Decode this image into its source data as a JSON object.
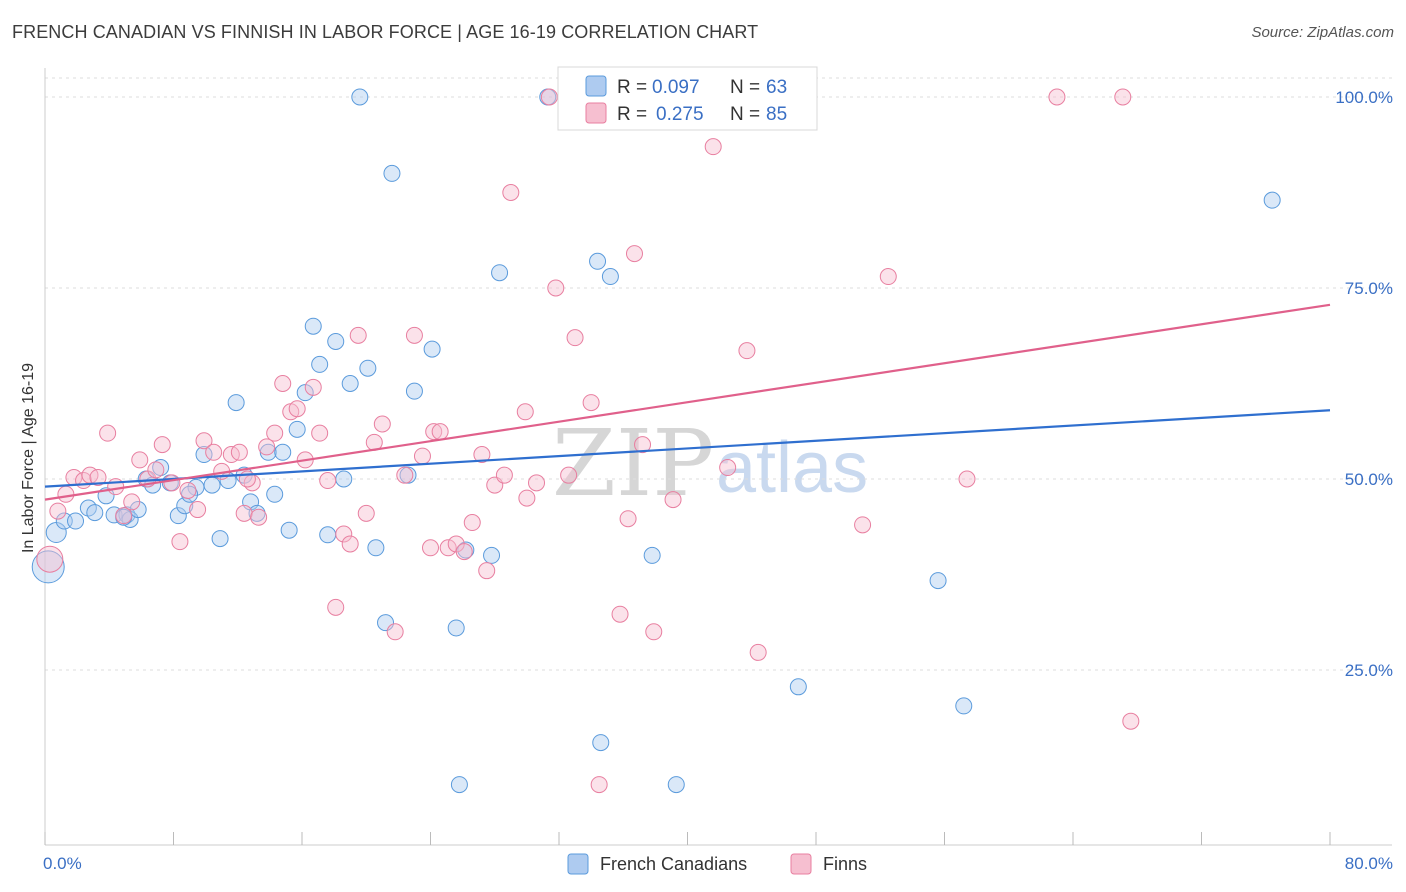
{
  "header": {
    "title": "FRENCH CANADIAN VS FINNISH IN LABOR FORCE | AGE 16-19 CORRELATION CHART",
    "source": "Source: ZipAtlas.com"
  },
  "colors": {
    "blue": "#5b9bdc",
    "blue_fill": "#aecbf0",
    "blue_line": "#2f6fcf",
    "pink": "#e87fa0",
    "pink_fill": "#f6bfd0",
    "pink_line": "#e0608b",
    "axis_label": "#3a6fc4",
    "grid": "#dddddd"
  },
  "watermark": {
    "zip": "ZIP",
    "atlas": "atlas"
  },
  "legend": {
    "rows": [
      {
        "r_label": "R =",
        "r_value": "0.097",
        "n_label": "N =",
        "n_value": "63"
      },
      {
        "r_label": "R =",
        "r_value": "0.275",
        "n_label": "N =",
        "n_value": "85"
      }
    ],
    "bottom": [
      "French Canadians",
      "Finns"
    ]
  },
  "chart_data": {
    "type": "scatter",
    "title": "FRENCH CANADIAN VS FINNISH IN LABOR FORCE | AGE 16-19 CORRELATION CHART",
    "xlabel": "",
    "ylabel": "In Labor Force | Age 16-19",
    "xlim": [
      0,
      80
    ],
    "ylim": [
      0,
      102
    ],
    "x_tick_labels": [
      "0.0%",
      "80.0%"
    ],
    "y_ticks": [
      25,
      50,
      75,
      100
    ],
    "y_tick_labels": [
      "25.0%",
      "50.0%",
      "75.0%",
      "100.0%"
    ],
    "grid": true,
    "legend_position": "top-center",
    "series": [
      {
        "name": "French Canadians",
        "r": 0.097,
        "n": 63,
        "trend": {
          "x0": 0,
          "y0": 49,
          "x1": 80,
          "y1": 59
        },
        "points": [
          [
            0.2,
            38.5,
            30
          ],
          [
            0.7,
            43,
            18
          ],
          [
            1.2,
            44.5,
            14
          ],
          [
            1.9,
            44.5,
            14
          ],
          [
            2.7,
            46.2,
            14
          ],
          [
            3.1,
            45.6,
            14
          ],
          [
            3.8,
            47.8,
            14
          ],
          [
            4.3,
            45.3,
            14
          ],
          [
            5.1,
            45.3,
            14
          ],
          [
            5.3,
            44.7,
            14
          ],
          [
            5.8,
            46.0,
            14
          ],
          [
            6.3,
            50.0,
            14
          ],
          [
            6.7,
            49.2,
            14
          ],
          [
            7.2,
            51.5,
            14
          ],
          [
            7.8,
            49.5,
            14
          ],
          [
            8.3,
            45.2,
            14
          ],
          [
            8.7,
            46.5,
            14
          ],
          [
            9.4,
            48.9,
            14
          ],
          [
            9.9,
            53.2,
            14
          ],
          [
            10.4,
            49.2,
            14
          ],
          [
            10.9,
            42.2,
            14
          ],
          [
            11.4,
            49.8,
            14
          ],
          [
            11.9,
            60.0,
            14
          ],
          [
            12.4,
            50.5,
            14
          ],
          [
            12.8,
            47.0,
            14
          ],
          [
            13.2,
            45.5,
            14
          ],
          [
            13.9,
            53.5,
            14
          ],
          [
            14.3,
            48.0,
            14
          ],
          [
            14.8,
            53.5,
            14
          ],
          [
            15.2,
            43.3,
            14
          ],
          [
            15.7,
            56.5,
            14
          ],
          [
            16.2,
            61.3,
            14
          ],
          [
            16.7,
            70.0,
            14
          ],
          [
            17.1,
            65.0,
            14
          ],
          [
            17.6,
            42.7,
            14
          ],
          [
            18.1,
            68.0,
            14
          ],
          [
            18.6,
            50.0,
            14
          ],
          [
            19.0,
            62.5,
            14
          ],
          [
            19.6,
            100.0,
            14
          ],
          [
            20.1,
            64.5,
            14
          ],
          [
            20.6,
            41.0,
            14
          ],
          [
            21.2,
            31.2,
            14
          ],
          [
            21.6,
            90.0,
            14
          ],
          [
            22.6,
            50.5,
            14
          ],
          [
            23.0,
            61.5,
            14
          ],
          [
            24.1,
            67.0,
            14
          ],
          [
            25.6,
            30.5,
            14
          ],
          [
            25.8,
            10.0,
            14
          ],
          [
            26.2,
            40.7,
            14
          ],
          [
            27.8,
            40.0,
            14
          ],
          [
            28.3,
            77.0,
            14
          ],
          [
            31.3,
            100.0,
            14
          ],
          [
            34.4,
            78.5,
            14
          ],
          [
            34.6,
            15.5,
            14
          ],
          [
            35.2,
            76.5,
            14
          ],
          [
            37.8,
            40.0,
            14
          ],
          [
            39.3,
            10.0,
            14
          ],
          [
            46.9,
            22.8,
            14
          ],
          [
            55.6,
            36.7,
            14
          ],
          [
            57.2,
            20.3,
            14
          ],
          [
            76.4,
            86.5,
            14
          ],
          [
            4.9,
            45.0,
            14
          ],
          [
            9.0,
            48.0,
            14
          ]
        ]
      },
      {
        "name": "Finns",
        "r": 0.275,
        "n": 85,
        "trend": {
          "x0": 0,
          "y0": 47.3,
          "x1": 80,
          "y1": 72.8
        },
        "points": [
          [
            0.3,
            39.5,
            24
          ],
          [
            0.8,
            45.8,
            14
          ],
          [
            1.3,
            48.0,
            14
          ],
          [
            1.8,
            50.2,
            14
          ],
          [
            2.4,
            49.8,
            14
          ],
          [
            2.8,
            50.5,
            14
          ],
          [
            3.3,
            50.2,
            14
          ],
          [
            3.9,
            56.0,
            14
          ],
          [
            4.4,
            49.0,
            14
          ],
          [
            4.9,
            45.2,
            14
          ],
          [
            5.4,
            47.0,
            14
          ],
          [
            5.9,
            52.5,
            14
          ],
          [
            6.4,
            50.0,
            14
          ],
          [
            6.9,
            51.2,
            14
          ],
          [
            7.3,
            54.5,
            14
          ],
          [
            7.9,
            49.5,
            14
          ],
          [
            8.4,
            41.8,
            14
          ],
          [
            8.9,
            48.5,
            14
          ],
          [
            9.5,
            46.0,
            14
          ],
          [
            9.9,
            55.0,
            14
          ],
          [
            10.5,
            53.5,
            14
          ],
          [
            11.0,
            51.0,
            14
          ],
          [
            11.6,
            53.2,
            14
          ],
          [
            12.1,
            53.5,
            14
          ],
          [
            12.4,
            45.5,
            14
          ],
          [
            12.9,
            49.5,
            14
          ],
          [
            13.3,
            45.0,
            14
          ],
          [
            13.8,
            54.2,
            14
          ],
          [
            14.3,
            56.0,
            14
          ],
          [
            14.8,
            62.5,
            14
          ],
          [
            15.3,
            58.8,
            14
          ],
          [
            15.7,
            59.2,
            14
          ],
          [
            16.2,
            52.5,
            14
          ],
          [
            16.7,
            62.0,
            14
          ],
          [
            17.1,
            56.0,
            14
          ],
          [
            17.6,
            49.8,
            14
          ],
          [
            18.1,
            33.2,
            14
          ],
          [
            18.6,
            42.8,
            14
          ],
          [
            19.0,
            41.5,
            14
          ],
          [
            19.5,
            68.8,
            14
          ],
          [
            20.0,
            45.5,
            14
          ],
          [
            20.5,
            54.8,
            14
          ],
          [
            21.0,
            57.2,
            14
          ],
          [
            21.8,
            30.0,
            14
          ],
          [
            22.4,
            50.5,
            14
          ],
          [
            23.0,
            68.8,
            14
          ],
          [
            23.5,
            53.0,
            14
          ],
          [
            24.2,
            56.2,
            14
          ],
          [
            24.6,
            56.2,
            14
          ],
          [
            25.1,
            41.0,
            14
          ],
          [
            25.6,
            41.5,
            14
          ],
          [
            26.1,
            40.5,
            14
          ],
          [
            26.6,
            44.3,
            14
          ],
          [
            27.2,
            53.2,
            14
          ],
          [
            27.5,
            38.0,
            14
          ],
          [
            28.0,
            49.2,
            14
          ],
          [
            28.6,
            50.5,
            14
          ],
          [
            29.0,
            87.5,
            14
          ],
          [
            29.9,
            58.8,
            14
          ],
          [
            30.6,
            49.5,
            14
          ],
          [
            31.4,
            100.0,
            14
          ],
          [
            31.8,
            75.0,
            14
          ],
          [
            32.6,
            50.5,
            14
          ],
          [
            33.0,
            68.5,
            14
          ],
          [
            34.0,
            60.0,
            14
          ],
          [
            34.5,
            10.0,
            14
          ],
          [
            35.8,
            32.3,
            14
          ],
          [
            36.3,
            44.8,
            14
          ],
          [
            36.7,
            79.5,
            14
          ],
          [
            37.2,
            54.5,
            14
          ],
          [
            37.9,
            30.0,
            14
          ],
          [
            39.1,
            47.3,
            14
          ],
          [
            41.6,
            93.5,
            14
          ],
          [
            42.5,
            51.5,
            14
          ],
          [
            43.7,
            66.8,
            14
          ],
          [
            44.4,
            27.3,
            14
          ],
          [
            50.9,
            44.0,
            14
          ],
          [
            52.5,
            76.5,
            14
          ],
          [
            57.4,
            50.0,
            14
          ],
          [
            63.0,
            100.0,
            14
          ],
          [
            67.1,
            100.0,
            14
          ],
          [
            67.6,
            18.3,
            14
          ],
          [
            12.6,
            50.0,
            14
          ],
          [
            24.0,
            41.0,
            14
          ],
          [
            30.0,
            47.5,
            14
          ]
        ]
      }
    ]
  }
}
